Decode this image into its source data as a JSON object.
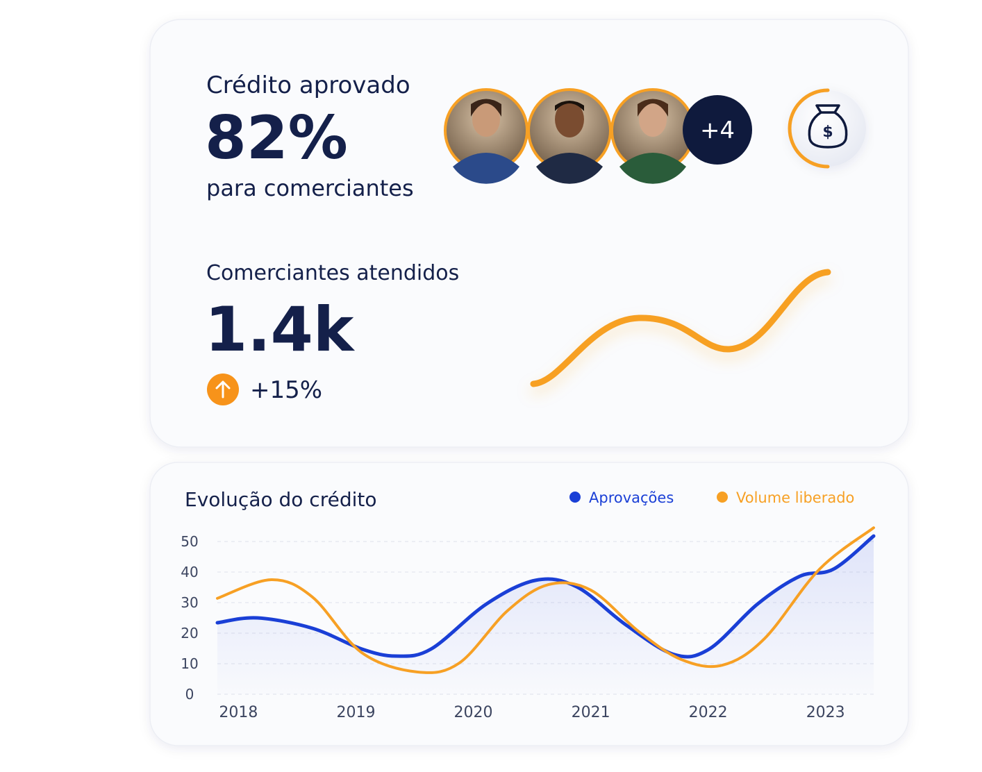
{
  "header_card": {
    "title": "Crédito aprovado",
    "value": "82%",
    "subtitle": "para comerciantes",
    "avatars_more": "+4"
  },
  "merchants": {
    "title": "Comerciantes atendidos",
    "value": "1.4k",
    "change": "+15%"
  },
  "chart_data": {
    "type": "line",
    "title": "Evolução do crédito",
    "xlim": [
      2017.82,
      2023.41
    ],
    "xticks": [
      2018,
      2019,
      2020,
      2021,
      2022,
      2023
    ],
    "ylim": [
      0,
      50
    ],
    "yticks": [
      0,
      10,
      20,
      30,
      40,
      50
    ],
    "grid": true,
    "series": [
      {
        "name": "Aprovações",
        "color": "#1a3fd6",
        "x": [
          2017.82,
          2018.16,
          2018.63,
          2019.05,
          2019.34,
          2019.64,
          2020.11,
          2020.53,
          2020.88,
          2021.3,
          2021.71,
          2022.01,
          2022.42,
          2022.78,
          2023.07,
          2023.41
        ],
        "values": [
          23.4,
          25,
          21.6,
          14.8,
          12.5,
          14.8,
          29.5,
          37.3,
          35.2,
          22.7,
          13,
          14.8,
          29.5,
          38.6,
          41,
          51.8
        ]
      },
      {
        "name": "Volume liberado",
        "color": "#f7a024",
        "x": [
          2017.82,
          2018.28,
          2018.63,
          2019.05,
          2019.52,
          2019.88,
          2020.29,
          2020.64,
          2021.0,
          2021.41,
          2021.77,
          2022.12,
          2022.48,
          2022.95,
          2023.41
        ],
        "values": [
          31.4,
          37.5,
          31.8,
          13.6,
          7.3,
          10.2,
          27.3,
          35.9,
          34.1,
          20.5,
          11.4,
          9.5,
          18.2,
          41,
          54.5
        ]
      }
    ]
  }
}
